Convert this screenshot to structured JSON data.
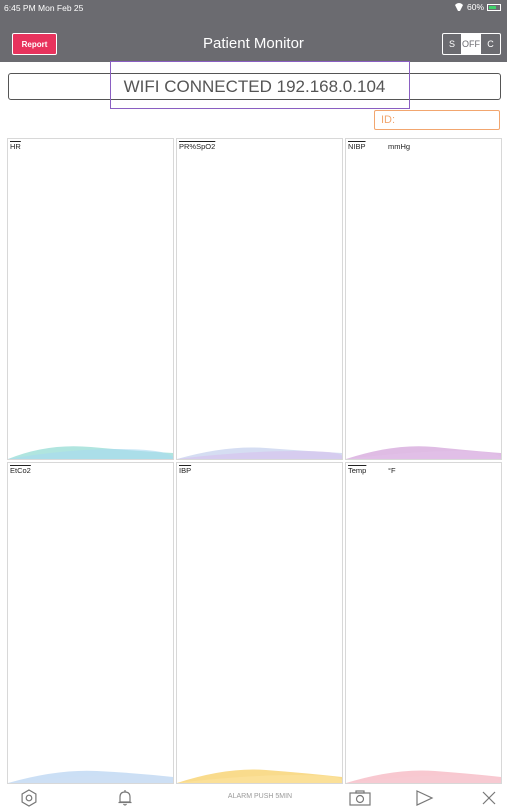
{
  "status_bar": {
    "time": "6:45 PM  Mon Feb 25",
    "battery": "60%"
  },
  "header": {
    "report_label": "Report",
    "title": "Patient Monitor",
    "modes": [
      "S",
      "OFF",
      "C"
    ],
    "active_mode": "OFF"
  },
  "connection": {
    "text": "WIFI CONNECTED 192.168.0.104"
  },
  "id_field": {
    "placeholder": "ID:"
  },
  "panels": {
    "hr": {
      "label": "HR",
      "unit": ""
    },
    "spo2": {
      "label": "PR%SpO2",
      "unit": ""
    },
    "nibp": {
      "label": "NIBP",
      "unit": "mmHg"
    },
    "etco2": {
      "label": "EtCo2",
      "unit": ""
    },
    "ibp": {
      "label": "IBP",
      "unit": ""
    },
    "temp": {
      "label": "Temp",
      "unit": "°F"
    }
  },
  "colors": {
    "header_bg": "#6b6b70",
    "report_btn": "#e8335d",
    "id_border": "#f2a66f",
    "highlight": "#8a5fc2",
    "hr_wave": "#6fd0c4",
    "spo2_wave": "#b9c7ea",
    "nibp_wave": "#c98fd2",
    "etco2_wave": "#a9c9ee",
    "ibp_wave": "#f6c74f",
    "temp_wave": "#f3a3b1"
  },
  "toolbar": {
    "alarm_text": "ALARM PUSH 5MIN",
    "icons": [
      "gear-icon",
      "bell-icon",
      "camera-icon",
      "play-icon",
      "close-icon"
    ]
  }
}
